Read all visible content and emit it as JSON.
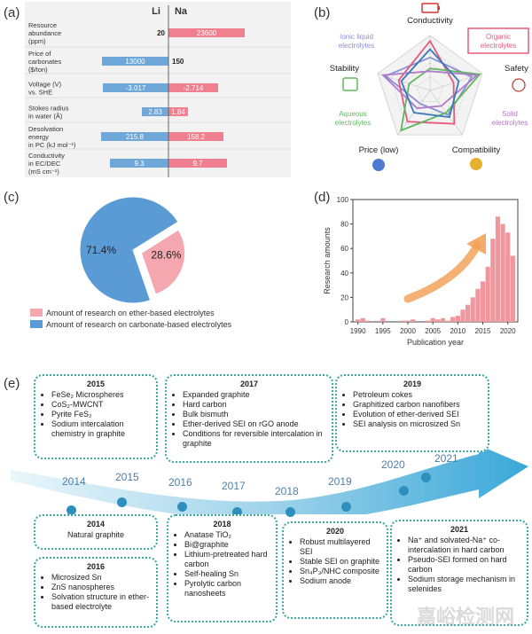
{
  "panels": {
    "a": "(a)",
    "b": "(b)",
    "c": "(c)",
    "d": "(d)",
    "e": "(e)"
  },
  "chart_a": {
    "type": "bar",
    "li_label": "Li",
    "na_label": "Na",
    "rows": [
      {
        "label": [
          "Resource",
          "abundance",
          "(ppm)"
        ],
        "li": "20",
        "na": "23600",
        "li_val": 20,
        "na_val": 23600
      },
      {
        "label": [
          "Price of",
          "carbonates",
          "($/ton)"
        ],
        "li": "13000",
        "na": "150",
        "li_val": 13000,
        "na_val": 150
      },
      {
        "label": [
          "Voltage (V)",
          "vs. SHE"
        ],
        "li": "-3.017",
        "na": "-2.714",
        "li_val": -3.017,
        "na_val": -2.714
      },
      {
        "label": [
          "Stokes radius",
          "in water (Å)"
        ],
        "li": "2.83",
        "na": "1.84",
        "li_val": 2.83,
        "na_val": 1.84
      },
      {
        "label": [
          "Desolvation",
          "energy",
          "in PC (kJ mol⁻¹)"
        ],
        "li": "215.8",
        "na": "158.2",
        "li_val": 215.8,
        "na_val": 158.2
      },
      {
        "label": [
          "Conductivity",
          "in EC/DEC",
          "(mS cm⁻¹)"
        ],
        "li": "9.3",
        "na": "9.7",
        "li_val": 9.3,
        "na_val": 9.7
      }
    ],
    "li_color": "#6fa7d8",
    "na_color": "#f0808f"
  },
  "chart_b": {
    "type": "radar",
    "axes": [
      "Conductivity",
      "Safety",
      "Compatibility",
      "Price (low)",
      "Stability"
    ],
    "series": [
      {
        "name": "Ionic liquid electrolytes",
        "color": "#8d8fd6",
        "values": [
          0.6,
          0.8,
          0.55,
          0.3,
          0.85
        ]
      },
      {
        "name": "Organic electrolytes",
        "color": "#e85a7a",
        "values": [
          0.9,
          0.45,
          0.75,
          0.7,
          0.6
        ]
      },
      {
        "name": "Aqueous electrolytes",
        "color": "#5fb85f",
        "values": [
          0.4,
          0.95,
          0.5,
          0.9,
          0.4
        ]
      },
      {
        "name": "Solid electrolytes",
        "color": "#b07ac8",
        "values": [
          0.35,
          0.9,
          0.35,
          0.4,
          0.9
        ]
      },
      {
        "name": "",
        "color": "#3a7ab8",
        "values": [
          0.75,
          0.55,
          0.6,
          0.5,
          0.55
        ]
      }
    ],
    "labels": {
      "ionic": [
        "Ionic liquid",
        "electrolytes"
      ],
      "organic": [
        "Organic",
        "electrolytes"
      ],
      "aqueous": [
        "Aqueous",
        "electrolytes"
      ],
      "solid": [
        "Solid",
        "electrolytes"
      ]
    }
  },
  "chart_c": {
    "type": "pie",
    "slices": [
      {
        "name": "Amount of research on ether-based electrolytes",
        "value": 28.6,
        "label": "28.6%",
        "color": "#f4a7ae"
      },
      {
        "name": "Amount of research on carbonate-based electrolytes",
        "value": 71.4,
        "label": "71.4%",
        "color": "#5b9bd5"
      }
    ]
  },
  "chart_d": {
    "type": "bar",
    "ylabel": "Research amounts",
    "xlabel": "Publication year",
    "xticks": [
      "1990",
      "1995",
      "2000",
      "2005",
      "2010",
      "2015",
      "2020"
    ],
    "yticks": [
      "0",
      "20",
      "40",
      "60",
      "80",
      "100"
    ],
    "ylim": [
      0,
      100
    ],
    "years": [
      1990,
      1991,
      1992,
      1993,
      1994,
      1995,
      1996,
      1997,
      1998,
      1999,
      2000,
      2001,
      2002,
      2003,
      2004,
      2005,
      2006,
      2007,
      2008,
      2009,
      2010,
      2011,
      2012,
      2013,
      2014,
      2015,
      2016,
      2017,
      2018,
      2019,
      2020,
      2021
    ],
    "values": [
      2,
      3,
      1,
      0,
      0,
      3,
      0,
      0,
      0,
      1,
      1,
      2,
      0,
      0,
      1,
      3,
      2,
      3,
      1,
      4,
      5,
      10,
      14,
      20,
      27,
      33,
      45,
      68,
      86,
      80,
      73,
      54
    ],
    "color": "#f0969c"
  },
  "timeline": {
    "years": [
      "2014",
      "2015",
      "2016",
      "2017",
      "2018",
      "2019",
      "2020",
      "2021"
    ],
    "top_boxes": [
      {
        "title": "2015",
        "items": [
          "FeSe₂ Microspheres",
          "CoS₂-MWCNT",
          "Pyrite FeS₂",
          "Sodium intercalation chemistry in graphite"
        ]
      },
      {
        "title": "2017",
        "items": [
          "Expanded graphite",
          "Hard carbon",
          "Bulk bismuth",
          "Ether-derived SEI on rGO anode",
          "Conditions for reversible intercalation in graphite"
        ]
      },
      {
        "title": "2019",
        "items": [
          "Petroleum cokes",
          "Graphitized carbon nanofibers",
          "Evolution of ether-derived SEI",
          "SEI analysis on microsized Sn"
        ]
      }
    ],
    "bottom_boxes": [
      {
        "title": "2014",
        "items": [],
        "text": "Natural graphite"
      },
      {
        "title": "2016",
        "items": [
          "Microsized Sn",
          "ZnS nanospheres",
          "Solvation structure in ether-based electrolyte"
        ]
      },
      {
        "title": "2018",
        "items": [
          "Anatase TiO₂",
          "Bi@graphite",
          "Lithium-pretreated hard carbon",
          "Self-healing Sn",
          "Pyrolytic carbon nanosheets"
        ]
      },
      {
        "title": "2020",
        "items": [
          "Robust multilayered SEI",
          "Stable SEI on graphite",
          "Sn₄P₃/NHC composite",
          "Sodium anode"
        ]
      },
      {
        "title": "2021",
        "items": [
          "Na⁺ and solvated-Na⁺ co-intercalation in hard carbon",
          "Pseudo-SEI formed on hard carbon",
          "Sodium storage mechanism in selenides"
        ]
      }
    ]
  },
  "watermark": "嘉峪检测网"
}
